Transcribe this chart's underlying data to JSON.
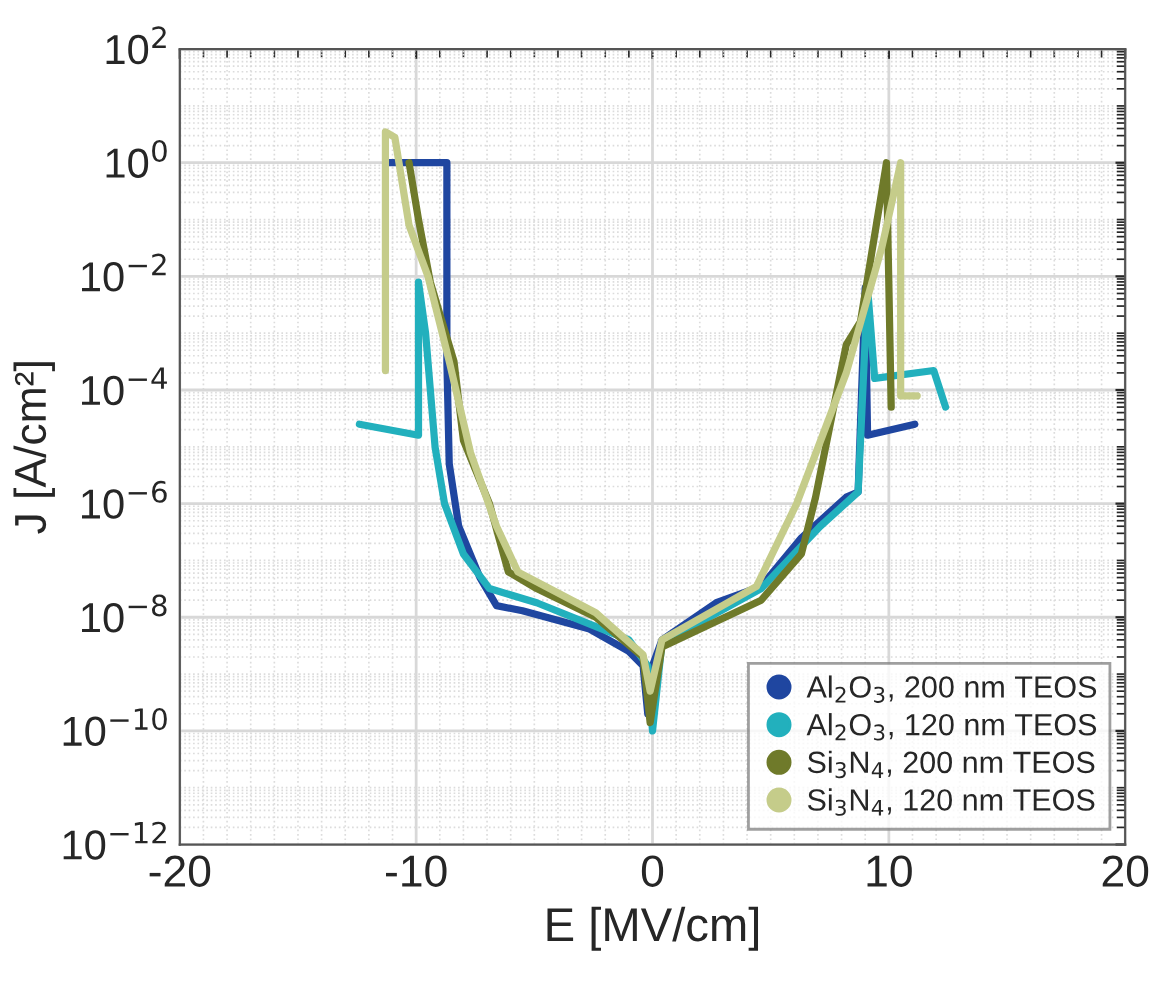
{
  "chart_data": {
    "type": "line",
    "xlabel": "E [MV/cm]",
    "ylabel": "J [A/cm²]",
    "log": "y",
    "grid": true,
    "legend": "bottom right",
    "xlim": [
      -20,
      20
    ],
    "xticks": [
      -20,
      -10,
      0,
      10,
      20
    ],
    "ylim": [
      1e-12,
      100
    ],
    "yticks": [
      {
        "value": 1e-12,
        "label": "10$^{−12}$"
      },
      {
        "value": 1e-10,
        "label": "10$^{−10}$"
      },
      {
        "value": 1e-08,
        "label": "10$^{−8}$"
      },
      {
        "value": 1e-06,
        "label": "10$^{−6}$"
      },
      {
        "value": 0.0001,
        "label": "10$^{−4}$"
      },
      {
        "value": 0.01,
        "label": "10$^{−2}$"
      },
      {
        "value": 1,
        "label": "10$^{0}$"
      },
      {
        "value": 100,
        "label": "10$^{2}$"
      }
    ],
    "series": [
      {
        "name": "Al$_{2}$O$_{3}$, 200 nm TEOS",
        "color": "#1f46a0",
        "x": [
          -11.2,
          -8.7,
          -8.7,
          -8.6,
          -8.2,
          -7.3,
          -6.6,
          -5.5,
          -2.7,
          -1.0,
          -0.4,
          -0.2,
          0.0,
          0.4,
          2.7,
          4.6,
          6.3,
          8.2,
          8.7,
          9.0,
          9.1,
          11.1
        ],
        "values": [
          1,
          1,
          0.00032,
          5e-06,
          4e-07,
          5e-08,
          1.6e-08,
          1.3e-08,
          6.3e-09,
          2.5e-09,
          1.4e-09,
          2e-10,
          1.4e-09,
          4e-09,
          1.8e-08,
          3.5e-08,
          2.5e-07,
          1.3e-06,
          1.6e-06,
          0.0063,
          1.6e-05,
          2.5e-05
        ]
      },
      {
        "name": "Al$_{2}$O$_{3}$, 120 nm TEOS",
        "color": "#22b0bd",
        "x": [
          -12.4,
          -9.9,
          -9.9,
          -9.6,
          -9.2,
          -8.8,
          -8.0,
          -6.9,
          -4.9,
          -1.0,
          -0.2,
          0.0,
          0.4,
          4.6,
          7.1,
          8.7,
          9.1,
          9.4,
          11.9,
          12.4
        ],
        "values": [
          2.5e-05,
          1.6e-05,
          0.0079,
          0.001,
          1e-05,
          1e-06,
          1.3e-07,
          3.2e-08,
          1.8e-08,
          4e-09,
          1.4e-09,
          1e-10,
          3.5e-09,
          3.2e-08,
          4e-07,
          1.6e-06,
          0.0063,
          0.00016,
          0.00022,
          5e-05
        ]
      },
      {
        "name": "Si$_{3}$N$_{4}$, 200 nm TEOS",
        "color": "#6f7a2a",
        "x": [
          -10.3,
          -9.9,
          -9.4,
          -8.4,
          -8.0,
          -6.9,
          -6.1,
          -4.9,
          -2.4,
          -0.4,
          -0.1,
          0.4,
          4.6,
          6.3,
          6.9,
          8.2,
          8.8,
          9.9,
          10.1
        ],
        "values": [
          1,
          0.1,
          0.0079,
          0.00032,
          1.3e-05,
          1e-06,
          6.3e-08,
          3.2e-08,
          1e-08,
          2e-09,
          1.4e-10,
          3e-09,
          2e-08,
          1.3e-07,
          1.3e-06,
          0.00063,
          0.0016,
          1,
          5e-05
        ]
      },
      {
        "name": "Si$_{3}$N$_{4}$, 120 nm TEOS",
        "color": "#c5cc8a",
        "x": [
          -11.3,
          -11.3,
          -10.9,
          -10.3,
          -9.5,
          -8.6,
          -7.7,
          -6.6,
          -5.7,
          -2.4,
          -0.4,
          -0.1,
          0.4,
          4.4,
          6.1,
          8.2,
          9.7,
          10.5,
          10.5,
          11.2
        ],
        "values": [
          0.00022,
          3.5,
          2.8,
          0.079,
          0.01,
          0.00032,
          7.9e-06,
          4e-07,
          6.3e-08,
          1.2e-08,
          2.2e-09,
          5e-10,
          4e-09,
          3.5e-08,
          1e-06,
          0.0002,
          0.032,
          1,
          7.9e-05,
          7.9e-05
        ]
      }
    ]
  }
}
